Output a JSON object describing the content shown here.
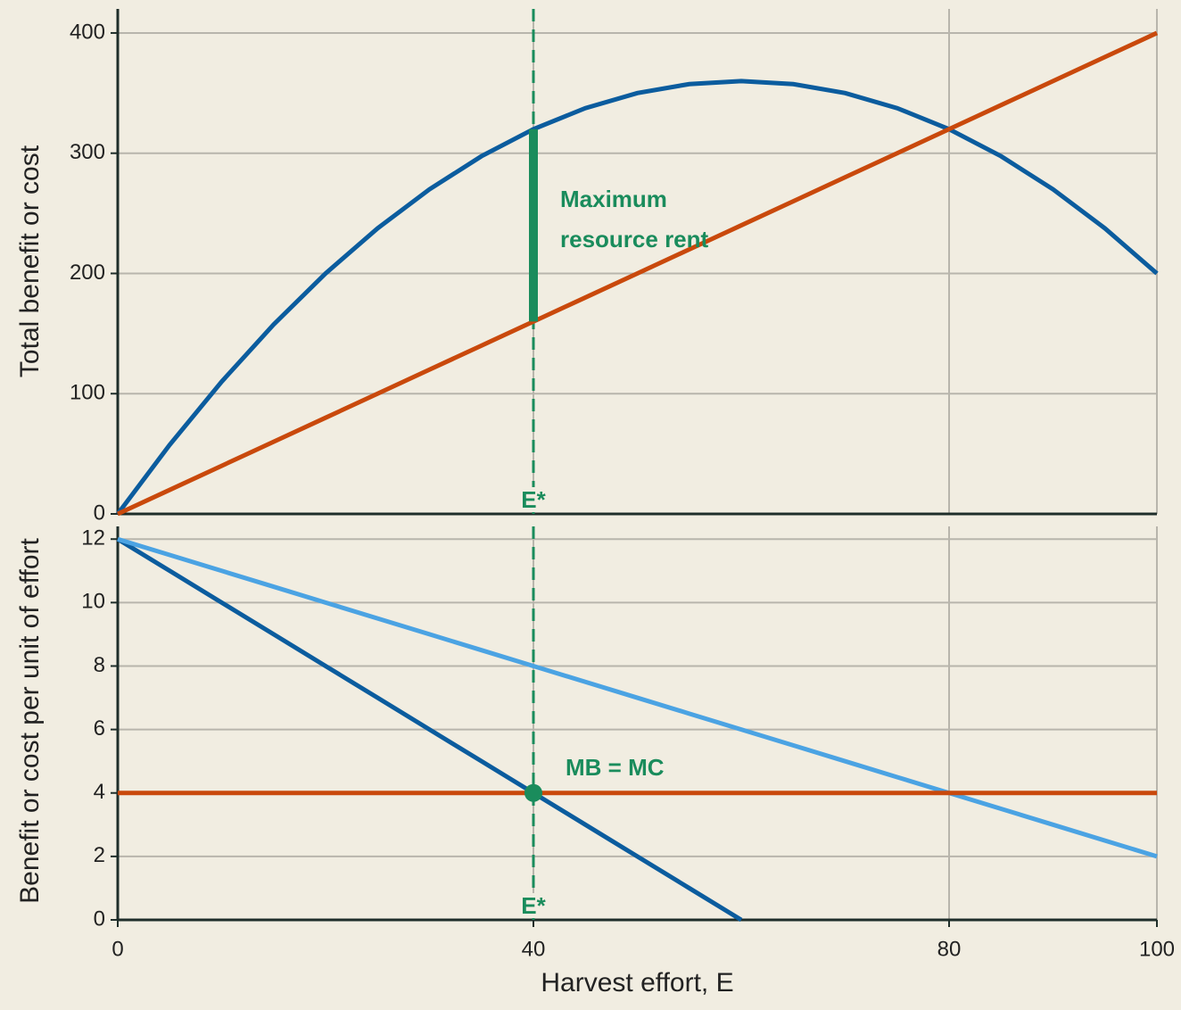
{
  "chart_data": [
    {
      "type": "line",
      "ylabel": "Total benefit or cost",
      "x": [
        0,
        5,
        10,
        15,
        20,
        25,
        30,
        35,
        40,
        45,
        50,
        55,
        60,
        65,
        70,
        75,
        80,
        85,
        90,
        95,
        100
      ],
      "series": [
        {
          "color": "#0b5c9e",
          "values": [
            0,
            57.5,
            110,
            157.5,
            200,
            237.5,
            270,
            297.5,
            320,
            337.5,
            350,
            357.5,
            360,
            357.5,
            350,
            337.5,
            320,
            297.5,
            270,
            237.5,
            200
          ]
        },
        {
          "color": "#c9490c",
          "values": [
            0,
            20,
            40,
            60,
            80,
            100,
            120,
            140,
            160,
            180,
            200,
            220,
            240,
            260,
            280,
            300,
            320,
            340,
            360,
            380,
            400
          ]
        }
      ],
      "xlim": [
        0,
        100
      ],
      "ylim": [
        0,
        420
      ],
      "xticks": [
        0,
        40,
        80,
        100
      ],
      "yticks": [
        0,
        100,
        200,
        300,
        400
      ],
      "xtick_labels": false,
      "grid": true,
      "vline": {
        "x": 40,
        "label": "E*",
        "color": "#1a8c5c"
      },
      "range_bar": {
        "x": 40,
        "low": 160,
        "high": 320,
        "color": "#1a8c5c"
      },
      "annotation": [
        "Maximum",
        "resource rent"
      ]
    },
    {
      "type": "line",
      "ylabel": "Benefit or cost per unit of effort",
      "xlabel": "Harvest effort, E",
      "x": [
        0,
        5,
        10,
        15,
        20,
        25,
        30,
        35,
        40,
        45,
        50,
        55,
        60,
        65,
        70,
        75,
        80,
        85,
        90,
        95,
        100
      ],
      "series": [
        {
          "color": "#0b5c9e",
          "values": [
            12,
            11,
            10,
            9,
            8,
            7,
            6,
            5,
            4,
            3,
            2,
            1,
            0,
            null,
            null,
            null,
            null,
            null,
            null,
            null,
            null
          ]
        },
        {
          "color": "#4ba3e3",
          "values": [
            12,
            11.5,
            11,
            10.5,
            10,
            9.5,
            9,
            8.5,
            8,
            7.5,
            7,
            6.5,
            6,
            5.5,
            5,
            4.5,
            4,
            3.5,
            3,
            2.5,
            2
          ]
        },
        {
          "color": "#c9490c",
          "values": [
            4,
            4,
            4,
            4,
            4,
            4,
            4,
            4,
            4,
            4,
            4,
            4,
            4,
            4,
            4,
            4,
            4,
            4,
            4,
            4,
            4
          ]
        }
      ],
      "xlim": [
        0,
        100
      ],
      "ylim": [
        0,
        12.4
      ],
      "xticks": [
        0,
        40,
        80,
        100
      ],
      "yticks": [
        0,
        2,
        4,
        6,
        8,
        10,
        12
      ],
      "xtick_labels": true,
      "grid": true,
      "vline": {
        "x": 40,
        "label": "E*",
        "color": "#1a8c5c"
      },
      "point": {
        "x": 40,
        "y": 4,
        "color": "#1a8c5c"
      },
      "annotation": [
        "MB = MC"
      ]
    }
  ]
}
